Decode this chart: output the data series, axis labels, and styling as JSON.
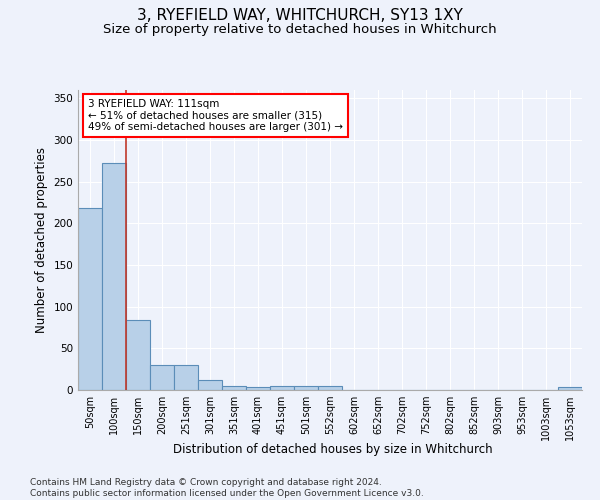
{
  "title": "3, RYEFIELD WAY, WHITCHURCH, SY13 1XY",
  "subtitle": "Size of property relative to detached houses in Whitchurch",
  "xlabel": "Distribution of detached houses by size in Whitchurch",
  "ylabel": "Number of detached properties",
  "categories": [
    "50sqm",
    "100sqm",
    "150sqm",
    "200sqm",
    "251sqm",
    "301sqm",
    "351sqm",
    "401sqm",
    "451sqm",
    "501sqm",
    "552sqm",
    "602sqm",
    "652sqm",
    "702sqm",
    "752sqm",
    "802sqm",
    "852sqm",
    "903sqm",
    "953sqm",
    "1003sqm",
    "1053sqm"
  ],
  "values": [
    219,
    272,
    84,
    30,
    30,
    12,
    5,
    4,
    5,
    5,
    5,
    0,
    0,
    0,
    0,
    0,
    0,
    0,
    0,
    0,
    4
  ],
  "bar_color": "#b8d0e8",
  "bar_edge_color": "#5b8db8",
  "annotation_text": "3 RYEFIELD WAY: 111sqm\n← 51% of detached houses are smaller (315)\n49% of semi-detached houses are larger (301) →",
  "annotation_box_color": "white",
  "annotation_box_edge_color": "red",
  "property_line_x": 1.5,
  "ylim": [
    0,
    360
  ],
  "yticks": [
    0,
    50,
    100,
    150,
    200,
    250,
    300,
    350
  ],
  "footer_text": "Contains HM Land Registry data © Crown copyright and database right 2024.\nContains public sector information licensed under the Open Government Licence v3.0.",
  "background_color": "#eef2fb",
  "grid_color": "#ffffff",
  "title_fontsize": 11,
  "subtitle_fontsize": 9.5,
  "label_fontsize": 8.5,
  "tick_fontsize": 7.5,
  "footer_fontsize": 6.5
}
